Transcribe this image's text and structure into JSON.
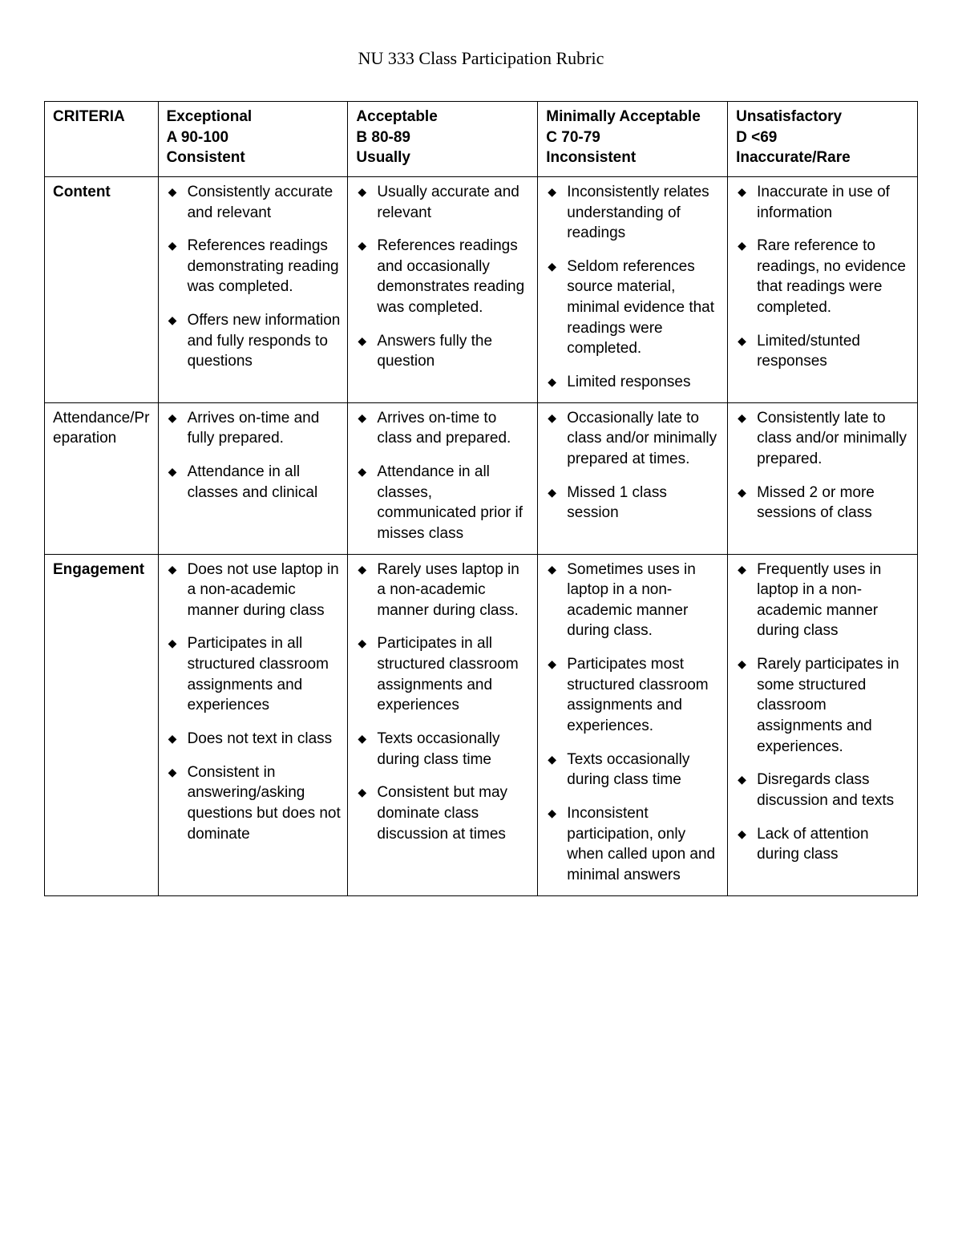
{
  "title": "NU 333 Class Participation Rubric",
  "table": {
    "criteria_header": "CRITERIA",
    "levels": [
      {
        "name": "Exceptional",
        "grade": "A 90-100",
        "descriptor": "Consistent"
      },
      {
        "name": "Acceptable",
        "grade": "B 80-89",
        "descriptor": "Usually"
      },
      {
        "name": "Minimally Acceptable",
        "grade": "C 70-79",
        "descriptor": "Inconsistent"
      },
      {
        "name": "Unsatisfactory",
        "grade": "D <69",
        "descriptor": "Inaccurate/Rare"
      }
    ],
    "rows": [
      {
        "criteria": "Content",
        "bold": true,
        "cells": [
          [
            "Consistently accurate and relevant",
            "References readings demonstrating reading was completed.",
            "Offers new information and fully responds to questions"
          ],
          [
            "Usually accurate and\n relevant",
            "References readings and occasionally demonstrates reading was completed.",
            "Answers fully the question"
          ],
          [
            "Inconsistently relates understanding of readings",
            "Seldom references source material, minimal evidence that readings were completed.",
            "Limited responses"
          ],
          [
            "Inaccurate in use of information",
            "Rare reference to readings, no evidence that readings were completed.",
            "Limited/stunted responses"
          ]
        ]
      },
      {
        "criteria": "Attendance/Preparation",
        "bold": false,
        "cells": [
          [
            "Arrives on-time and fully prepared.",
            "Attendance in all classes and clinical"
          ],
          [
            "Arrives on-time to class and prepared.",
            "Attendance in all classes, communicated prior if misses class"
          ],
          [
            "Occasionally late to class and/or minimally prepared at times.",
            "Missed 1 class session"
          ],
          [
            "Consistently late to class and/or minimally prepared.",
            "Missed 2 or more sessions of class"
          ]
        ]
      },
      {
        "criteria": "Engagement",
        "bold": true,
        "cells": [
          [
            "Does not use laptop in a non-academic manner during class",
            "Participates in all structured classroom assignments and experiences",
            "Does not text in class",
            "Consistent in answering/asking questions but does not dominate"
          ],
          [
            "Rarely uses laptop in a non-academic manner during class.",
            "Participates in all structured classroom assignments and experiences",
            "Texts occasionally during class time",
            "Consistent but may dominate class discussion at times"
          ],
          [
            "Sometimes uses in laptop in a non-academic manner during class.",
            "Participates most structured classroom assignments and experiences.",
            "Texts occasionally during class time",
            "Inconsistent participation, only when called upon and minimal answers"
          ],
          [
            "Frequently uses in laptop in a non-academic manner during class",
            "Rarely participates in some structured classroom assignments and experiences.",
            "Disregards class discussion and texts",
            "Lack of attention during class"
          ]
        ]
      }
    ]
  }
}
